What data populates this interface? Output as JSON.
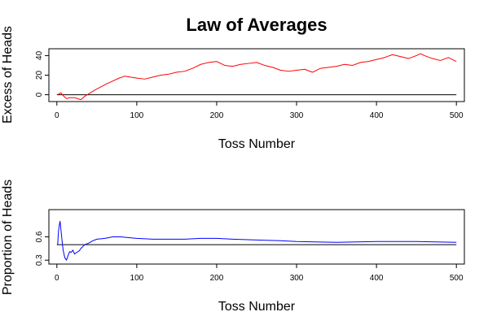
{
  "chart_data": [
    {
      "type": "line",
      "title": "Law of Averages",
      "xlabel": "Toss Number",
      "ylabel": "Excess of Heads",
      "xlim": [
        -10,
        510
      ],
      "ylim": [
        -7,
        47
      ],
      "xticks": [
        0,
        100,
        200,
        300,
        400,
        500
      ],
      "yticks": [
        0,
        20,
        40
      ],
      "reference_line": 0,
      "color": "#ff0000",
      "reference_color": "#000000",
      "series": [
        {
          "x": [
            1,
            5,
            8,
            12,
            16,
            22,
            26,
            30,
            36,
            42,
            48,
            55,
            62,
            70,
            78,
            85,
            92,
            100,
            110,
            120,
            130,
            140,
            150,
            160,
            170,
            180,
            190,
            200,
            210,
            220,
            230,
            240,
            250,
            260,
            270,
            280,
            290,
            300,
            310,
            320,
            330,
            340,
            350,
            360,
            370,
            380,
            390,
            400,
            410,
            420,
            430,
            440,
            450,
            455,
            460,
            470,
            480,
            490,
            500
          ],
          "values": [
            0,
            2,
            -1,
            -4,
            -3,
            -3,
            -4,
            -5,
            -1,
            2,
            5,
            8,
            11,
            14,
            17,
            19,
            18,
            17,
            16,
            18,
            20,
            21,
            23,
            24,
            27,
            31,
            33,
            34,
            30,
            29,
            31,
            32,
            33,
            30,
            28,
            25,
            24,
            25,
            26,
            23,
            27,
            28,
            29,
            31,
            30,
            33,
            34,
            36,
            38,
            41,
            39,
            37,
            40,
            42,
            40,
            37,
            35,
            38,
            34
          ]
        }
      ]
    },
    {
      "type": "line",
      "title": "",
      "xlabel": "Toss Number",
      "ylabel": "Proportion of Heads",
      "xlim": [
        -10,
        510
      ],
      "ylim": [
        0.25,
        0.95
      ],
      "xticks": [
        0,
        100,
        200,
        300,
        400,
        500
      ],
      "yticks": [
        0.3,
        0.6
      ],
      "ytick_labels": [
        "0.3",
        "0.6"
      ],
      "reference_line": 0.5,
      "color": "#0000ff",
      "reference_color": "#000000",
      "series": [
        {
          "x": [
            1,
            2,
            3,
            4,
            5,
            6,
            7,
            8,
            10,
            12,
            14,
            16,
            18,
            20,
            22,
            25,
            28,
            30,
            35,
            40,
            45,
            50,
            60,
            70,
            80,
            90,
            100,
            120,
            140,
            160,
            180,
            200,
            220,
            250,
            280,
            300,
            350,
            400,
            450,
            500
          ],
          "values": [
            0.5,
            0.67,
            0.75,
            0.8,
            0.7,
            0.6,
            0.5,
            0.42,
            0.33,
            0.3,
            0.36,
            0.41,
            0.4,
            0.43,
            0.38,
            0.4,
            0.42,
            0.45,
            0.5,
            0.52,
            0.55,
            0.57,
            0.58,
            0.6,
            0.6,
            0.59,
            0.58,
            0.57,
            0.57,
            0.57,
            0.58,
            0.58,
            0.57,
            0.56,
            0.55,
            0.54,
            0.53,
            0.54,
            0.54,
            0.53
          ]
        }
      ]
    }
  ]
}
